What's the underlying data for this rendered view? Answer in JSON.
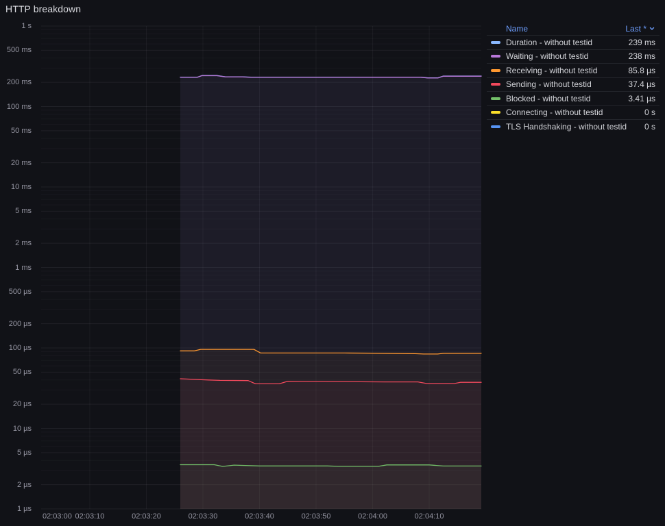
{
  "panel": {
    "title": "HTTP breakdown"
  },
  "colors": {
    "accent_link": "#6E9FFF",
    "background": "#111217"
  },
  "legend": {
    "columns": {
      "name": "Name",
      "last": "Last *"
    },
    "sort_icon": "chevron-down",
    "position": "right-table"
  },
  "chart_data": {
    "type": "line",
    "title": "HTTP breakdown",
    "grid": true,
    "legend_position": "right",
    "x_axis": {
      "unit": "time (hh:mm:ss)",
      "range_s": [
        1.4,
        79.2
      ],
      "ticks": [
        {
          "t": 0,
          "label": "02:03:00"
        },
        {
          "t": 10,
          "label": "02:03:10"
        },
        {
          "t": 20,
          "label": "02:03:20"
        },
        {
          "t": 30,
          "label": "02:03:30"
        },
        {
          "t": 40,
          "label": "02:03:40"
        },
        {
          "t": 50,
          "label": "02:03:50"
        },
        {
          "t": 60,
          "label": "02:04:00"
        },
        {
          "t": 70,
          "label": "02:04:10"
        }
      ]
    },
    "y_axis": {
      "scale": "log10",
      "unit": "seconds",
      "range_s": [
        1e-06,
        1
      ],
      "ticks": [
        {
          "v": 1,
          "label": "1 s"
        },
        {
          "v": 0.5,
          "label": "500 ms"
        },
        {
          "v": 0.2,
          "label": "200 ms"
        },
        {
          "v": 0.1,
          "label": "100 ms"
        },
        {
          "v": 0.05,
          "label": "50 ms"
        },
        {
          "v": 0.02,
          "label": "20 ms"
        },
        {
          "v": 0.01,
          "label": "10 ms"
        },
        {
          "v": 0.005,
          "label": "5 ms"
        },
        {
          "v": 0.002,
          "label": "2 ms"
        },
        {
          "v": 0.001,
          "label": "1 ms"
        },
        {
          "v": 0.0005,
          "label": "500 µs"
        },
        {
          "v": 0.0002,
          "label": "200 µs"
        },
        {
          "v": 0.0001,
          "label": "100 µs"
        },
        {
          "v": 5e-05,
          "label": "50 µs"
        },
        {
          "v": 2e-05,
          "label": "20 µs"
        },
        {
          "v": 1e-05,
          "label": "10 µs"
        },
        {
          "v": 5e-06,
          "label": "5 µs"
        },
        {
          "v": 2e-06,
          "label": "2 µs"
        },
        {
          "v": 1e-06,
          "label": "1 µs"
        }
      ]
    },
    "series": [
      {
        "name": "Duration - without testid",
        "color": "#8AB8FF",
        "last": "239 ms",
        "points": [
          [
            26,
            0.2315
          ],
          [
            29,
            0.2315
          ],
          [
            29.8,
            0.2425
          ],
          [
            32.5,
            0.2425
          ],
          [
            34,
            0.234
          ],
          [
            37,
            0.234
          ],
          [
            38.5,
            0.2315
          ],
          [
            50,
            0.2315
          ],
          [
            60,
            0.232
          ],
          [
            68.5,
            0.232
          ],
          [
            69.8,
            0.227
          ],
          [
            71.5,
            0.227
          ],
          [
            72.5,
            0.239
          ],
          [
            79.2,
            0.239
          ]
        ]
      },
      {
        "name": "Waiting - without testid",
        "color": "#B877D9",
        "last": "238 ms",
        "points": [
          [
            26,
            0.2305
          ],
          [
            29,
            0.2305
          ],
          [
            29.8,
            0.2415
          ],
          [
            32.5,
            0.2415
          ],
          [
            34,
            0.233
          ],
          [
            37,
            0.233
          ],
          [
            38.5,
            0.2305
          ],
          [
            50,
            0.2305
          ],
          [
            60,
            0.231
          ],
          [
            68.5,
            0.231
          ],
          [
            69.8,
            0.226
          ],
          [
            71.5,
            0.226
          ],
          [
            72.5,
            0.238
          ],
          [
            79.2,
            0.238
          ]
        ]
      },
      {
        "name": "Receiving - without testid",
        "color": "#FF9830",
        "last": "85.8 µs",
        "points": [
          [
            26,
            9.2e-05
          ],
          [
            28.5,
            9.2e-05
          ],
          [
            29.6,
            9.6e-05
          ],
          [
            39,
            9.6e-05
          ],
          [
            40.2,
            8.65e-05
          ],
          [
            55,
            8.65e-05
          ],
          [
            60,
            8.6e-05
          ],
          [
            67.5,
            8.5e-05
          ],
          [
            69,
            8.4e-05
          ],
          [
            71.5,
            8.4e-05
          ],
          [
            72.5,
            8.58e-05
          ],
          [
            79.2,
            8.58e-05
          ]
        ]
      },
      {
        "name": "Sending - without testid",
        "color": "#F2495C",
        "last": "37.4 µs",
        "points": [
          [
            26,
            4.14e-05
          ],
          [
            31,
            4e-05
          ],
          [
            33,
            3.95e-05
          ],
          [
            38,
            3.93e-05
          ],
          [
            39.3,
            3.58e-05
          ],
          [
            43.5,
            3.58e-05
          ],
          [
            45,
            3.86e-05
          ],
          [
            52,
            3.83e-05
          ],
          [
            62,
            3.78e-05
          ],
          [
            68,
            3.78e-05
          ],
          [
            69.5,
            3.62e-05
          ],
          [
            74.5,
            3.62e-05
          ],
          [
            75.5,
            3.74e-05
          ],
          [
            79.2,
            3.74e-05
          ]
        ]
      },
      {
        "name": "Blocked - without testid",
        "color": "#73BF69",
        "last": "3.41 µs",
        "points": [
          [
            26,
            3.54e-06
          ],
          [
            32,
            3.54e-06
          ],
          [
            33.5,
            3.37e-06
          ],
          [
            35.5,
            3.5e-06
          ],
          [
            40,
            3.42e-06
          ],
          [
            52,
            3.42e-06
          ],
          [
            54,
            3.38e-06
          ],
          [
            61,
            3.38e-06
          ],
          [
            62.5,
            3.52e-06
          ],
          [
            70,
            3.52e-06
          ],
          [
            72.5,
            3.41e-06
          ],
          [
            79.2,
            3.41e-06
          ]
        ]
      },
      {
        "name": "Connecting - without testid",
        "color": "#FADE2A",
        "last": "0 s",
        "points": []
      },
      {
        "name": "TLS Handshaking - without testid",
        "color": "#5794F2",
        "last": "0 s",
        "points": []
      }
    ]
  }
}
